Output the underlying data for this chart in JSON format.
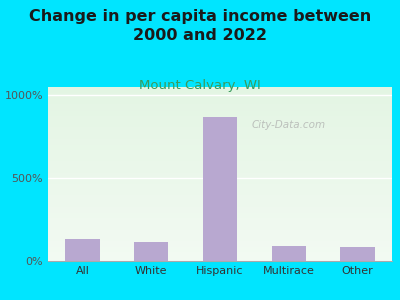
{
  "title": "Change in per capita income between\n2000 and 2022",
  "subtitle": "Mount Calvary, WI",
  "categories": [
    "All",
    "White",
    "Hispanic",
    "Multirace",
    "Other"
  ],
  "values": [
    130,
    115,
    870,
    90,
    85
  ],
  "bar_color": "#b8a8d0",
  "title_fontsize": 11.5,
  "subtitle_fontsize": 9.5,
  "subtitle_color": "#3a9a5c",
  "title_color": "#1a1a1a",
  "background_color": "#00e5ff",
  "yticks": [
    0,
    500,
    1000
  ],
  "yticklabels": [
    "0%",
    "500%",
    "1000%"
  ],
  "ylim": [
    0,
    1050
  ],
  "watermark": "City-Data.com"
}
